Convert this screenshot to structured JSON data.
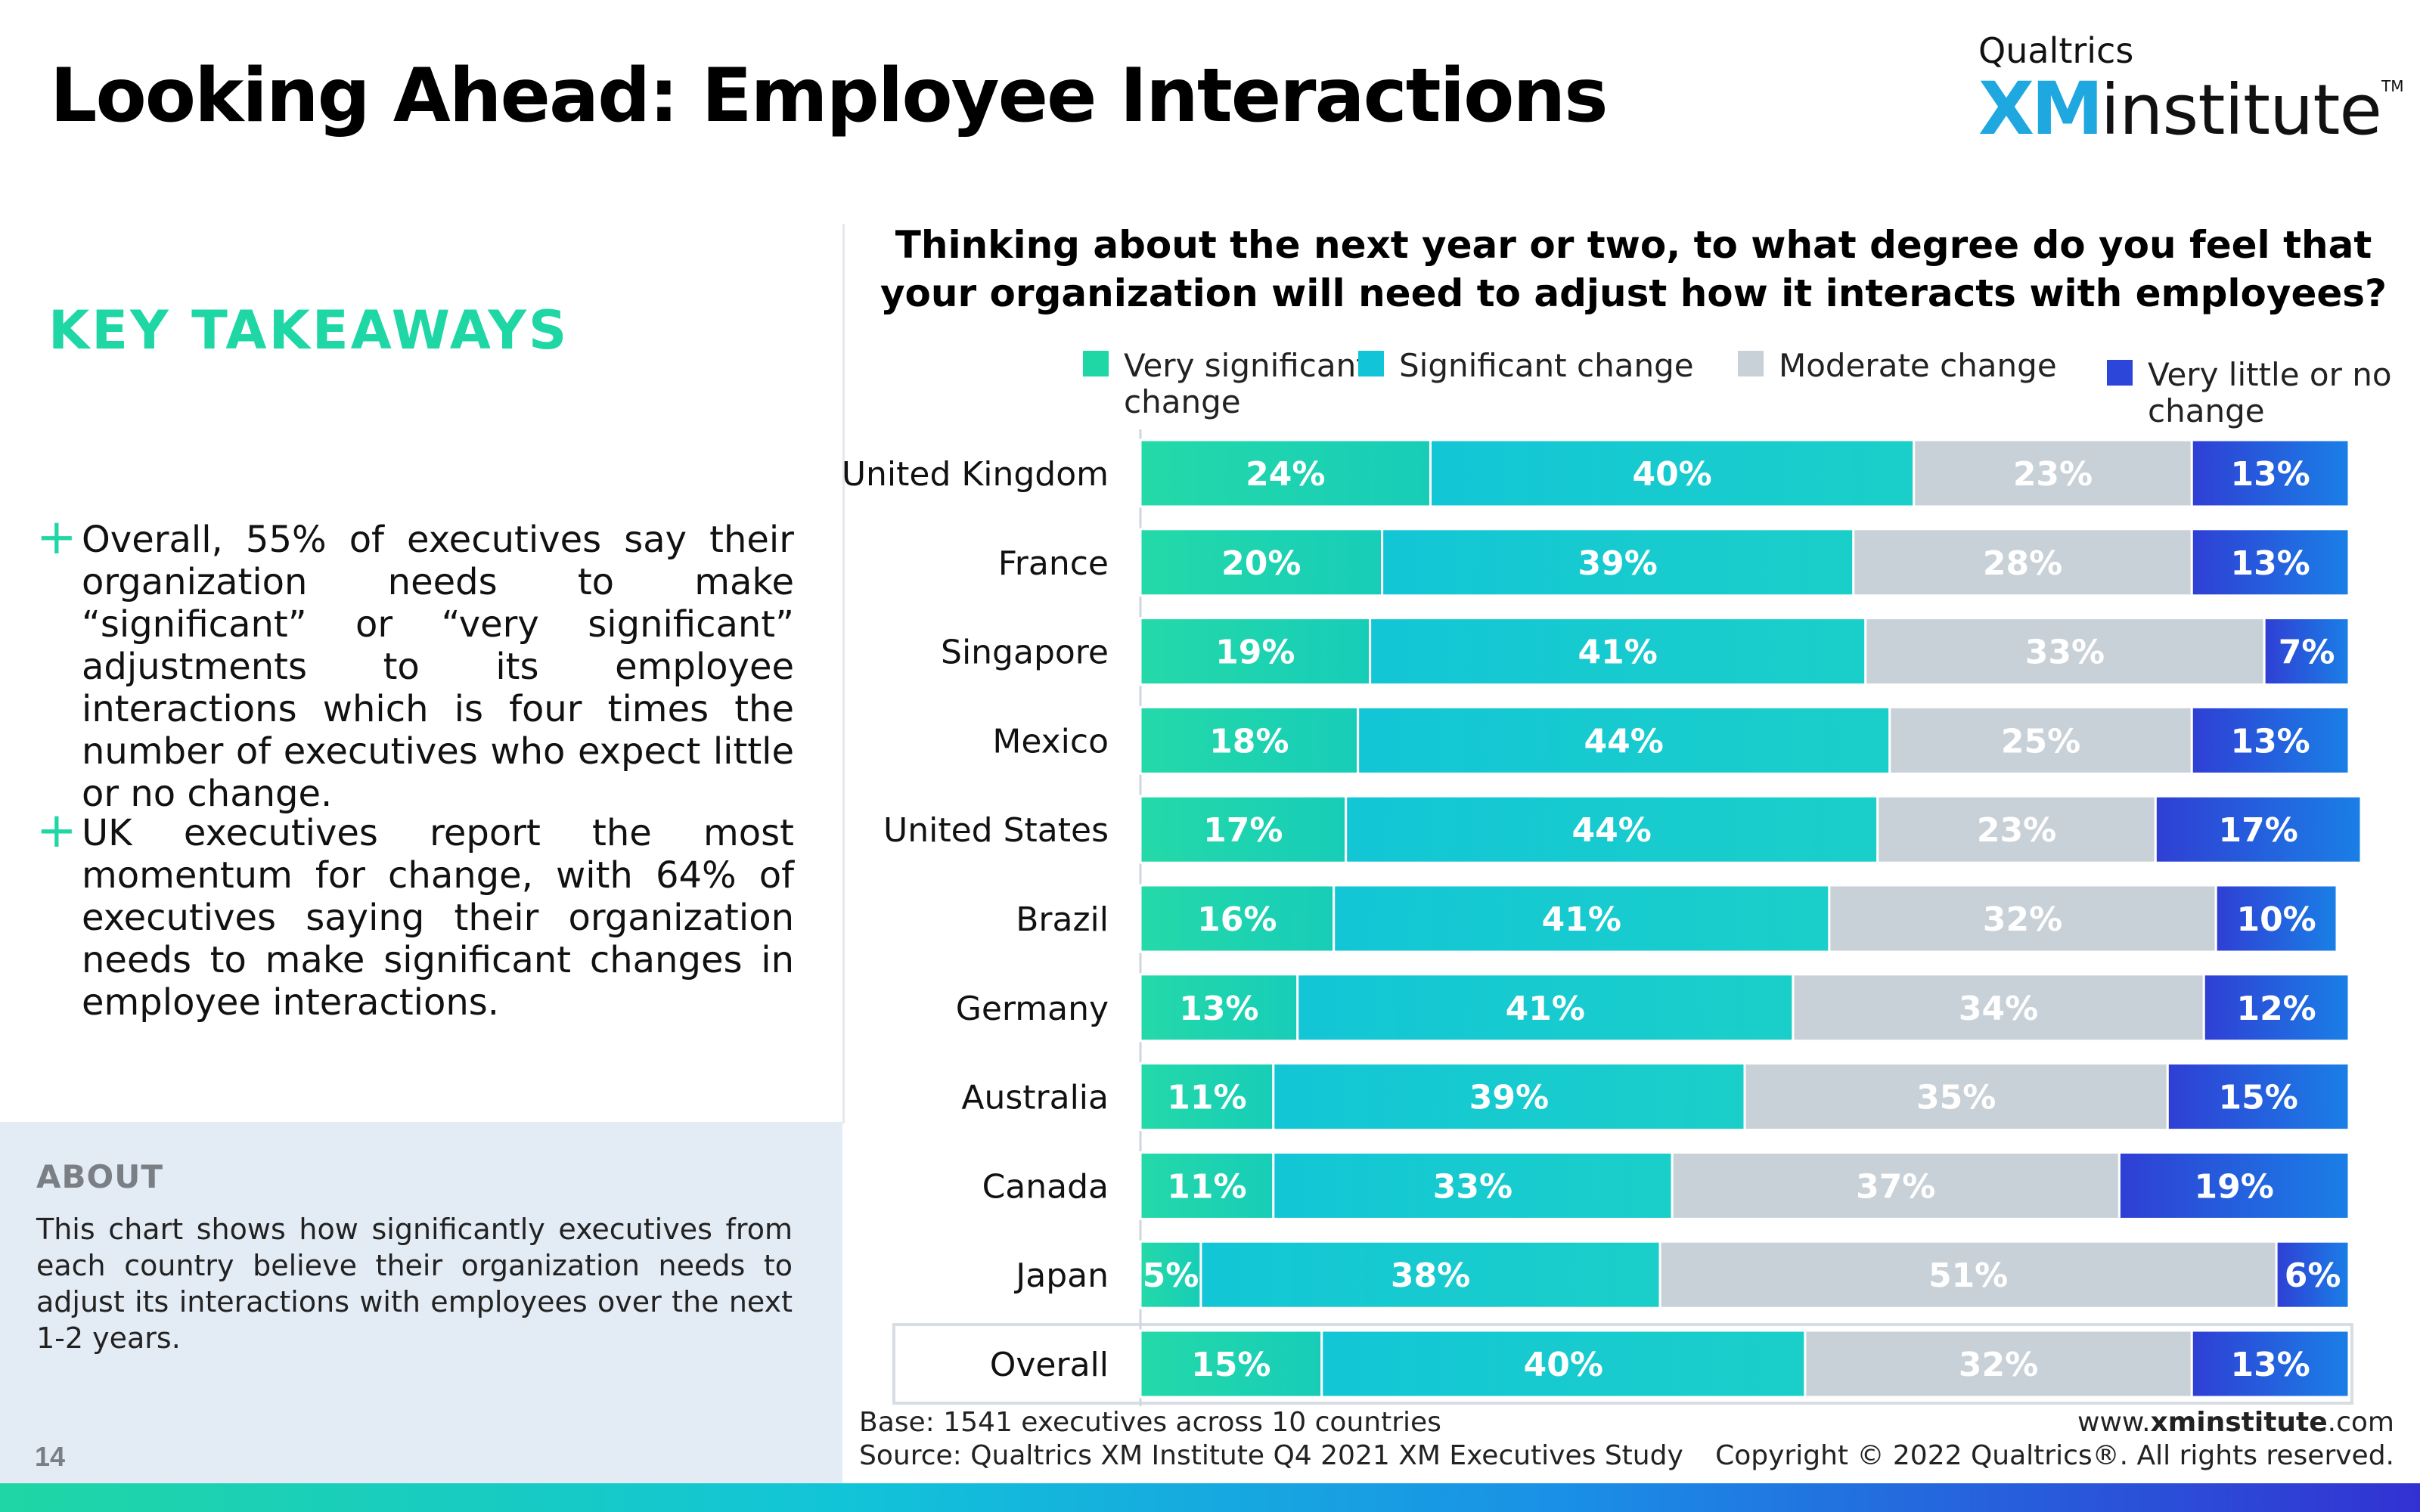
{
  "header": {
    "title": "Looking Ahead: Employee Interactions",
    "logo": {
      "small": "Qualtrics",
      "xm": "XM",
      "institute": "institute",
      "tm": "TM"
    }
  },
  "takeaways": {
    "heading": "KEY TAKEAWAYS",
    "bullets": [
      "Overall, 55% of executives say their organization needs to make “significant” or “very significant” adjustments to its employee interactions which is four times the number of executives who expect little or no change.",
      "UK executives report the most momentum for change, with 64% of executives saying their organization needs to make significant changes in employee interactions."
    ]
  },
  "about": {
    "heading": "ABOUT",
    "text": "This chart shows how significantly executives from each country believe their organization needs to adjust its interactions with employees over the next 1-2 years."
  },
  "page_number": "14",
  "footer": {
    "base": "Base: 1541 executives across 10 countries",
    "source": "Source: Qualtrics XM Institute Q4 2021 XM Executives Study",
    "url_prefix": "www.",
    "url_bold": "xminstitute",
    "url_suffix": ".com",
    "copyright": "Copyright © 2022 Qualtrics®. All rights reserved."
  },
  "colors": {
    "very_significant": "#1fd6a5",
    "significant": "#12c4d8",
    "moderate": "#c9d1d8",
    "very_little": "#2b46d8",
    "accent": "#1fd6a5"
  },
  "chart_data": {
    "type": "bar",
    "orientation": "horizontal",
    "stacked": true,
    "title": "Thinking about the next year or two, to what degree do you feel that your organization will need to adjust how it interacts with employees?",
    "categories": [
      "United Kingdom",
      "France",
      "Singapore",
      "Mexico",
      "United States",
      "Brazil",
      "Germany",
      "Australia",
      "Canada",
      "Japan",
      "Overall"
    ],
    "highlight_category": "Overall",
    "value_format": "percent",
    "xlim": [
      0,
      100
    ],
    "legend_position": "top",
    "series": [
      {
        "name": "Very significant change",
        "color": "#1fd6a5",
        "values": [
          24,
          20,
          19,
          18,
          17,
          16,
          13,
          11,
          11,
          5,
          15
        ]
      },
      {
        "name": "Significant change",
        "color": "#12c4d8",
        "values": [
          40,
          39,
          41,
          44,
          44,
          41,
          41,
          39,
          33,
          38,
          40
        ]
      },
      {
        "name": "Moderate change",
        "color": "#c9d1d8",
        "values": [
          23,
          28,
          33,
          25,
          23,
          32,
          34,
          35,
          37,
          51,
          32
        ]
      },
      {
        "name": "Very little or no change",
        "color": "#2b46d8",
        "values": [
          13,
          13,
          7,
          13,
          17,
          10,
          12,
          15,
          19,
          6,
          13
        ]
      }
    ],
    "legend": [
      {
        "lines": [
          "Very significant",
          "change"
        ]
      },
      {
        "lines": [
          "Significant change"
        ]
      },
      {
        "lines": [
          "Moderate change"
        ]
      },
      {
        "lines": [
          "Very little or no",
          "change"
        ]
      }
    ]
  }
}
